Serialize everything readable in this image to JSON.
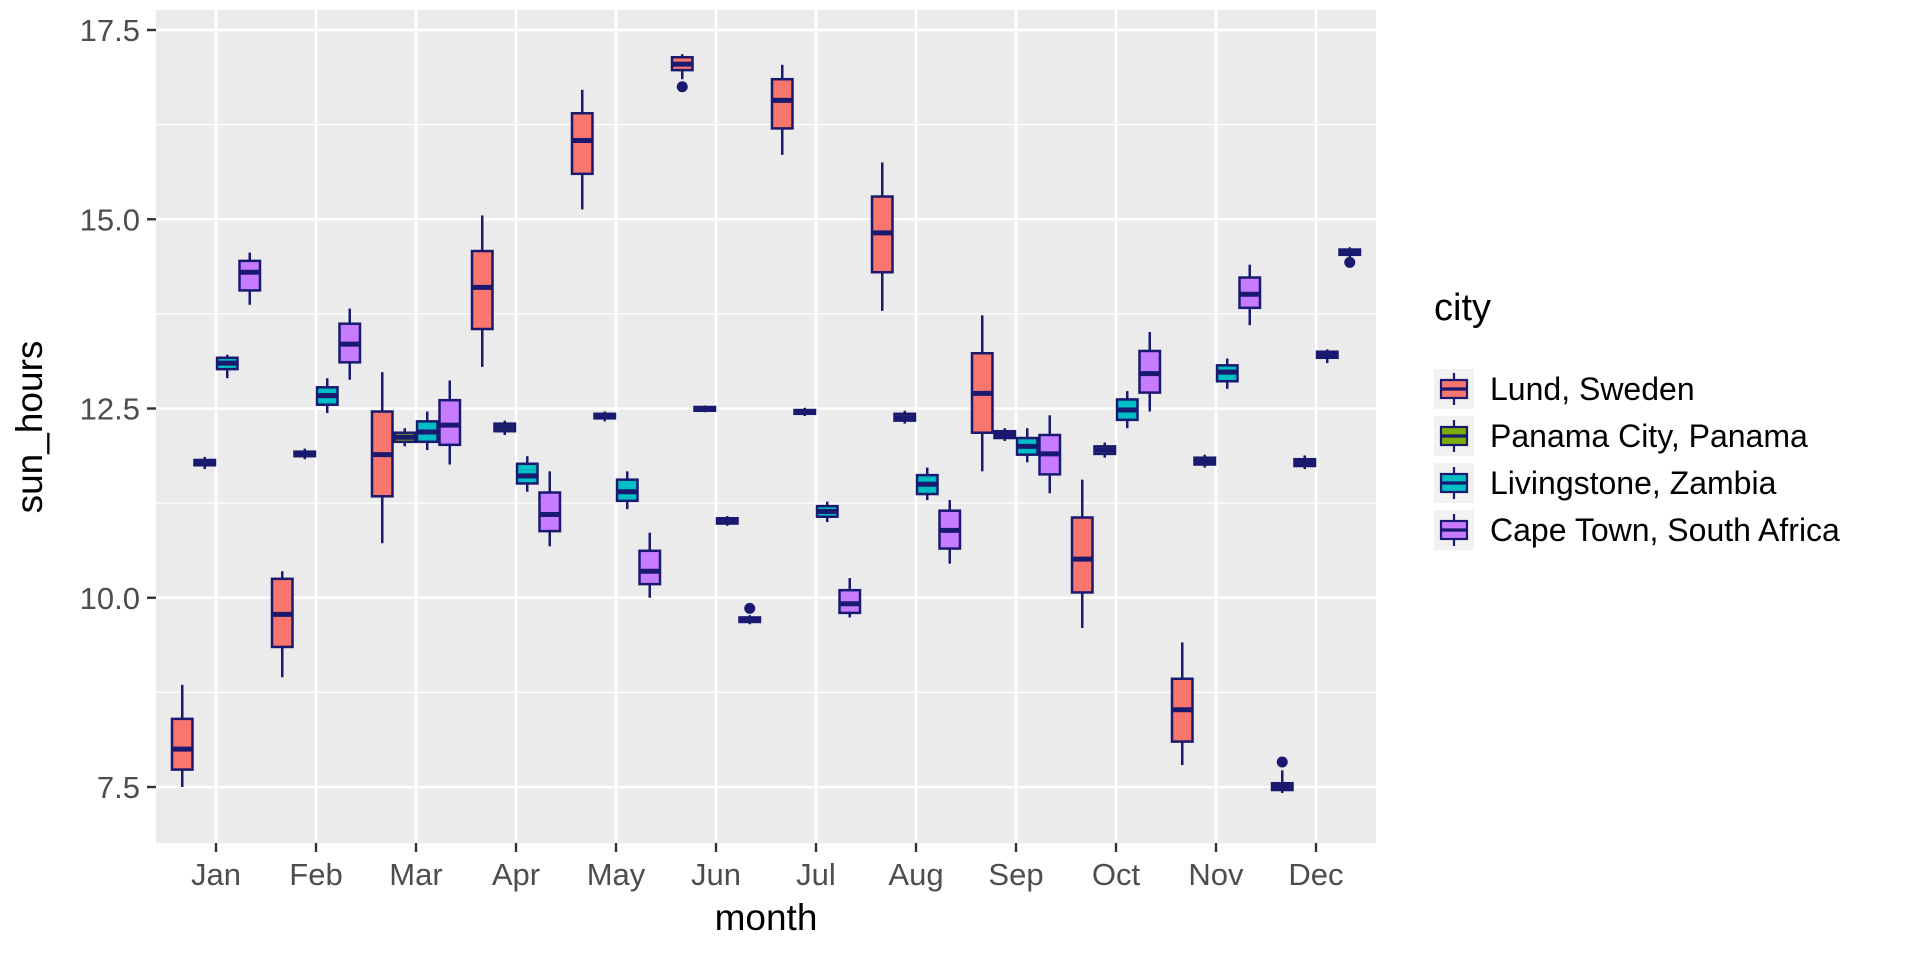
{
  "chart_data": {
    "type": "boxplot",
    "xlabel": "month",
    "ylabel": "sun_hours",
    "categories": [
      "Jan",
      "Feb",
      "Mar",
      "Apr",
      "May",
      "Jun",
      "Jul",
      "Aug",
      "Sep",
      "Oct",
      "Nov",
      "Dec"
    ],
    "y_ticks": [
      "7.5",
      "10.0",
      "12.5",
      "15.0",
      "17.5"
    ],
    "y_tick_values": [
      7.5,
      10.0,
      12.5,
      15.0,
      17.5
    ],
    "y_minor_values": [
      8.75,
      11.25,
      13.75,
      16.25
    ],
    "ylim": [
      6.76,
      17.76
    ],
    "grid": true,
    "legend": {
      "title": "city",
      "position": "right"
    },
    "series": [
      {
        "name": "Lund, Sweden",
        "color": "#F8766D",
        "stats": [
          [
            7.5,
            7.73,
            8.0,
            8.4,
            8.85
          ],
          [
            8.95,
            9.35,
            9.78,
            10.25,
            10.35
          ],
          [
            10.72,
            11.34,
            11.89,
            12.46,
            12.98
          ],
          [
            13.05,
            13.55,
            14.1,
            14.58,
            15.05
          ],
          [
            15.13,
            15.6,
            16.04,
            16.4,
            16.71
          ],
          [
            16.85,
            16.97,
            17.05,
            17.14,
            17.18
          ],
          [
            15.85,
            16.2,
            16.57,
            16.85,
            17.04
          ],
          [
            13.79,
            14.3,
            14.82,
            15.3,
            15.75
          ],
          [
            11.67,
            12.18,
            12.7,
            13.23,
            13.73
          ],
          [
            9.6,
            10.07,
            10.51,
            11.06,
            11.56
          ],
          [
            7.79,
            8.1,
            8.52,
            8.93,
            9.41
          ],
          [
            7.42,
            7.46,
            7.5,
            7.55,
            7.72
          ]
        ],
        "outliers": [
          [],
          [],
          [],
          [],
          [],
          [
            16.75
          ],
          [],
          [],
          [],
          [],
          [],
          [
            7.83
          ]
        ]
      },
      {
        "name": "Panama City, Panama",
        "color": "#7CAE00",
        "stats": [
          [
            11.7,
            11.75,
            11.78,
            11.82,
            11.86
          ],
          [
            11.83,
            11.87,
            11.9,
            11.93,
            11.97
          ],
          [
            12.0,
            12.06,
            12.12,
            12.18,
            12.24
          ],
          [
            12.15,
            12.2,
            12.25,
            12.3,
            12.34
          ],
          [
            12.33,
            12.37,
            12.4,
            12.43,
            12.46
          ],
          [
            12.45,
            12.47,
            12.5,
            12.52,
            12.54
          ],
          [
            12.4,
            12.43,
            12.46,
            12.48,
            12.51
          ],
          [
            12.3,
            12.34,
            12.38,
            12.43,
            12.47
          ],
          [
            12.07,
            12.11,
            12.15,
            12.2,
            12.24
          ],
          [
            11.85,
            11.9,
            11.95,
            12.0,
            12.05
          ],
          [
            11.72,
            11.76,
            11.8,
            11.85,
            11.89
          ],
          [
            11.7,
            11.74,
            11.78,
            11.83,
            11.88
          ]
        ],
        "outliers": [
          [],
          [],
          [],
          [],
          [],
          [],
          [],
          [],
          [],
          [],
          [],
          []
        ]
      },
      {
        "name": "Livingstone, Zambia",
        "color": "#00BFC4",
        "stats": [
          [
            12.9,
            13.02,
            13.1,
            13.17,
            13.21
          ],
          [
            12.44,
            12.55,
            12.67,
            12.78,
            12.9
          ],
          [
            11.95,
            12.06,
            12.19,
            12.33,
            12.46
          ],
          [
            11.4,
            11.51,
            11.61,
            11.77,
            11.87
          ],
          [
            11.17,
            11.28,
            11.4,
            11.56,
            11.67
          ],
          [
            10.95,
            10.98,
            11.01,
            11.05,
            11.08
          ],
          [
            11.0,
            11.07,
            11.14,
            11.21,
            11.27
          ],
          [
            11.29,
            11.37,
            11.5,
            11.62,
            11.72
          ],
          [
            11.79,
            11.89,
            12.0,
            12.11,
            12.24
          ],
          [
            12.24,
            12.35,
            12.48,
            12.62,
            12.73
          ],
          [
            12.76,
            12.86,
            12.98,
            13.07,
            13.16
          ],
          [
            13.1,
            13.17,
            13.21,
            13.25,
            13.28
          ]
        ],
        "outliers": [
          [],
          [],
          [],
          [],
          [],
          [],
          [],
          [],
          [],
          [],
          [],
          []
        ]
      },
      {
        "name": "Cape Town, South Africa",
        "color": "#C77CFF",
        "stats": [
          [
            13.87,
            14.06,
            14.3,
            14.45,
            14.56
          ],
          [
            12.88,
            13.11,
            13.35,
            13.62,
            13.82
          ],
          [
            11.76,
            12.02,
            12.28,
            12.61,
            12.87
          ],
          [
            10.68,
            10.88,
            11.1,
            11.39,
            11.67
          ],
          [
            10.0,
            10.18,
            10.35,
            10.62,
            10.86
          ],
          [
            9.65,
            9.68,
            9.71,
            9.74,
            9.77
          ],
          [
            9.74,
            9.8,
            9.92,
            10.1,
            10.26
          ],
          [
            10.45,
            10.65,
            10.89,
            11.15,
            11.29
          ],
          [
            11.38,
            11.63,
            11.9,
            12.15,
            12.41
          ],
          [
            12.46,
            12.71,
            12.96,
            13.26,
            13.51
          ],
          [
            13.6,
            13.83,
            14.01,
            14.23,
            14.4
          ],
          [
            14.5,
            14.53,
            14.57,
            14.6,
            14.63
          ]
        ],
        "outliers": [
          [],
          [],
          [],
          [],
          [],
          [
            9.86
          ],
          [],
          [],
          [],
          [],
          [],
          [
            14.43
          ]
        ]
      }
    ],
    "colors": {
      "panel_bg": "#EBEBEB",
      "grid": "#FFFFFF",
      "box_border": "#191970",
      "tick_label": "#4D4D4D",
      "tick_mark": "#333333",
      "axis_title": "#000000",
      "legend_key_bg": "#F2F2F2",
      "legend_text": "#000000"
    }
  }
}
